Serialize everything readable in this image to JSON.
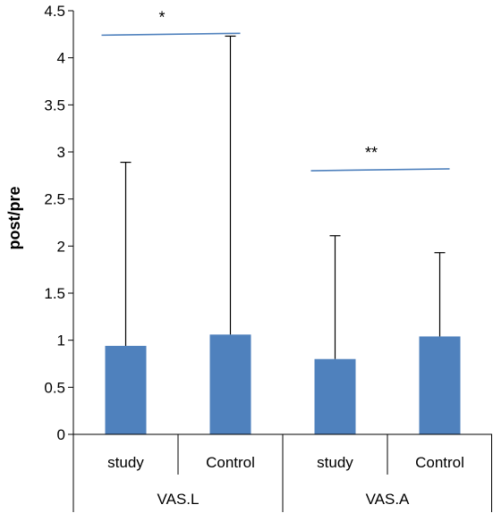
{
  "chart_data": {
    "type": "bar",
    "ylabel": "post/pre",
    "ylim": [
      0,
      4.5
    ],
    "yticks": [
      "0",
      "0.5",
      "1",
      "1.5",
      "2",
      "2.5",
      "3",
      "3.5",
      "4",
      "4.5"
    ],
    "categories": [
      "study",
      "Control",
      "study",
      "Control"
    ],
    "groups": [
      "VAS.L",
      "VAS.A"
    ],
    "values": [
      0.94,
      1.06,
      0.8,
      1.04
    ],
    "error_upper": [
      2.89,
      4.23,
      2.11,
      1.93
    ],
    "bar_color": "#4F81BD",
    "significance": [
      {
        "label": "*",
        "from": 0,
        "to": 1,
        "y": [
          4.24,
          4.26
        ]
      },
      {
        "label": "**",
        "from": 2,
        "to": 3,
        "y": [
          2.8,
          2.82
        ]
      }
    ],
    "grid": false
  }
}
